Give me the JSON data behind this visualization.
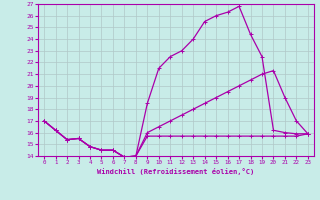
{
  "xlabel": "Windchill (Refroidissement éolien,°C)",
  "bg_color": "#c8ece8",
  "line_color": "#aa00aa",
  "grid_color": "#b0c8c8",
  "xlim": [
    -0.5,
    23.5
  ],
  "ylim": [
    14,
    27
  ],
  "xticks": [
    0,
    1,
    2,
    3,
    4,
    5,
    6,
    7,
    8,
    9,
    10,
    11,
    12,
    13,
    14,
    15,
    16,
    17,
    18,
    19,
    20,
    21,
    22,
    23
  ],
  "yticks": [
    14,
    15,
    16,
    17,
    18,
    19,
    20,
    21,
    22,
    23,
    24,
    25,
    26,
    27
  ],
  "line1_x": [
    0,
    1,
    2,
    3,
    4,
    5,
    6,
    7,
    8,
    9,
    10,
    11,
    12,
    13,
    14,
    15,
    16,
    17,
    18,
    19,
    20,
    21,
    22,
    23
  ],
  "line1_y": [
    17.0,
    16.2,
    15.4,
    15.5,
    14.8,
    14.5,
    14.5,
    13.9,
    14.0,
    15.7,
    15.7,
    15.7,
    15.7,
    15.7,
    15.7,
    15.7,
    15.7,
    15.7,
    15.7,
    15.7,
    15.7,
    15.7,
    15.7,
    15.9
  ],
  "line2_x": [
    0,
    1,
    2,
    3,
    4,
    5,
    6,
    7,
    8,
    9,
    10,
    11,
    12,
    13,
    14,
    15,
    16,
    17,
    18,
    19,
    20,
    21,
    22,
    23
  ],
  "line2_y": [
    17.0,
    16.2,
    15.4,
    15.5,
    14.8,
    14.5,
    14.5,
    13.9,
    14.0,
    16.0,
    16.5,
    17.0,
    17.5,
    18.0,
    18.5,
    19.0,
    19.5,
    20.0,
    20.5,
    21.0,
    21.3,
    19.0,
    17.0,
    15.9
  ],
  "line3_x": [
    0,
    1,
    2,
    3,
    4,
    5,
    6,
    7,
    8,
    9,
    10,
    11,
    12,
    13,
    14,
    15,
    16,
    17,
    18,
    19,
    20,
    21,
    22,
    23
  ],
  "line3_y": [
    17.0,
    16.2,
    15.4,
    15.5,
    14.8,
    14.5,
    14.5,
    13.9,
    14.0,
    18.5,
    21.5,
    22.5,
    23.0,
    24.0,
    25.5,
    26.0,
    26.3,
    26.8,
    24.4,
    22.5,
    16.2,
    16.0,
    15.9,
    15.9
  ]
}
